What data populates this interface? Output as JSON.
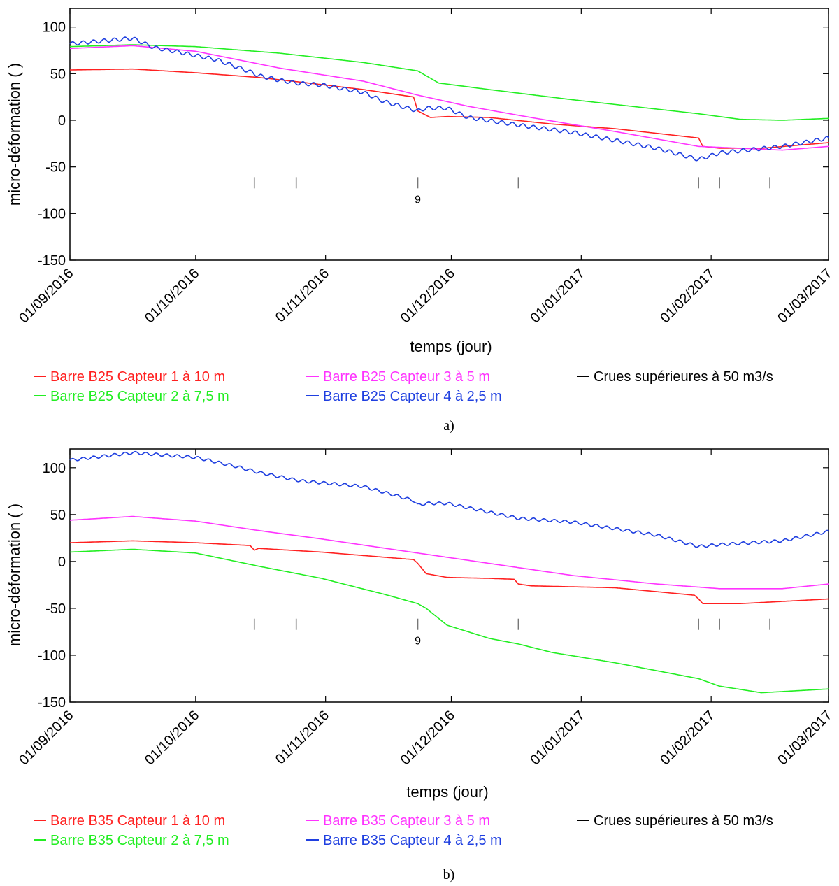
{
  "chart_data": [
    {
      "type": "line",
      "panel_label": "a)",
      "xlabel": "temps (jour)",
      "ylabel": "micro-déformation ( )",
      "ylim": [
        -150,
        120
      ],
      "yticks": [
        100,
        50,
        0,
        -50,
        -100,
        -150
      ],
      "xlim": [
        0,
        181
      ],
      "xtick_days": [
        0,
        30,
        61,
        91,
        122,
        153,
        181
      ],
      "xtick_labels": [
        "01/09/2016",
        "01/10/2016",
        "01/11/2016",
        "01/12/2016",
        "01/01/2017",
        "01/02/2017",
        "01/03/2017"
      ],
      "flood_marks": {
        "days": [
          44,
          54,
          83,
          107,
          150,
          155,
          167
        ],
        "y": -67,
        "label": "9",
        "label_day": 83
      },
      "legend": [
        {
          "label": "Barre B25  Capteur 1 à 10 m",
          "color": "#ff2020"
        },
        {
          "label": "Barre B25  Capteur 2 à 7,5 m",
          "color": "#22ee22"
        },
        {
          "label": "Barre B25  Capteur 3 à 5 m",
          "color": "#ff33ff"
        },
        {
          "label": "Barre B25  Capteur 4 à 2,5 m",
          "color": "#1f3fe0"
        },
        {
          "label": "Crues supérieures à 50 m3/s",
          "color": "#000000"
        }
      ],
      "series": [
        {
          "name": "Barre B25 Capteur 1 à 10 m",
          "color": "#ff2020",
          "x": [
            0,
            15,
            30,
            45,
            55,
            70,
            82,
            83,
            86,
            90,
            100,
            115,
            130,
            148,
            150,
            151,
            155,
            165,
            181
          ],
          "y": [
            54,
            55,
            51,
            46,
            41,
            33,
            25,
            10,
            3,
            4,
            3,
            -4,
            -9,
            -18,
            -19,
            -28,
            -30,
            -30,
            -24
          ]
        },
        {
          "name": "Barre B25 Capteur 2 à 7,5 m",
          "color": "#22ee22",
          "x": [
            0,
            15,
            30,
            50,
            70,
            83,
            88,
            100,
            120,
            140,
            150,
            160,
            170,
            181
          ],
          "y": [
            79,
            81,
            79,
            72,
            62,
            53,
            40,
            33,
            22,
            12,
            7,
            1,
            0,
            2
          ]
        },
        {
          "name": "Barre B25 Capteur 3 à 5 m",
          "color": "#ff33ff",
          "x": [
            0,
            15,
            30,
            50,
            70,
            83,
            95,
            110,
            130,
            150,
            170,
            181
          ],
          "y": [
            77,
            80,
            74,
            56,
            42,
            27,
            15,
            3,
            -12,
            -28,
            -32,
            -28
          ]
        },
        {
          "name": "Barre B25 Capteur 4 à 2,5 m",
          "color": "#1f3fe0",
          "x": [
            0,
            10,
            15,
            20,
            25,
            35,
            43,
            45,
            50,
            54,
            60,
            70,
            75,
            83,
            85,
            90,
            95,
            110,
            120,
            140,
            150,
            155,
            170,
            181
          ],
          "y": [
            82,
            86,
            88,
            78,
            74,
            65,
            52,
            48,
            43,
            40,
            38,
            30,
            20,
            10,
            13,
            13,
            3,
            -7,
            -13,
            -30,
            -42,
            -35,
            -28,
            -19
          ],
          "wiggle": [
            4,
            2.5
          ]
        }
      ]
    },
    {
      "type": "line",
      "panel_label": "b)",
      "xlabel": "temps (jour)",
      "ylabel": "micro-déformation ( )",
      "ylim": [
        -150,
        120
      ],
      "yticks": [
        100,
        50,
        0,
        -50,
        -100,
        -150
      ],
      "xlim": [
        0,
        181
      ],
      "xtick_days": [
        0,
        30,
        61,
        91,
        122,
        153,
        181
      ],
      "xtick_labels": [
        "01/09/2016",
        "01/10/2016",
        "01/11/2016",
        "01/12/2016",
        "01/01/2017",
        "01/02/2017",
        "01/03/2017"
      ],
      "flood_marks": {
        "days": [
          44,
          54,
          83,
          107,
          150,
          155,
          167
        ],
        "y": -67,
        "label": "9",
        "label_day": 83
      },
      "legend": [
        {
          "label": "Barre B35  Capteur 1 à 10 m",
          "color": "#ff2020"
        },
        {
          "label": "Barre B35  Capteur 2 à 7,5 m",
          "color": "#22ee22"
        },
        {
          "label": "Barre B35  Capteur 3 à 5 m",
          "color": "#ff33ff"
        },
        {
          "label": "Barre B35  Capteur 4 à 2,5 m",
          "color": "#1f3fe0"
        },
        {
          "label": "Crues supérieures à 50 m3/s",
          "color": "#000000"
        }
      ],
      "series": [
        {
          "name": "Barre B35 Capteur 1 à 10 m",
          "color": "#ff2020",
          "x": [
            0,
            15,
            30,
            43,
            44,
            45,
            60,
            82,
            83,
            85,
            90,
            100,
            106,
            107,
            110,
            130,
            149,
            150,
            151,
            160,
            181
          ],
          "y": [
            20,
            22,
            20,
            17,
            12,
            14,
            10,
            2,
            -2,
            -13,
            -17,
            -18,
            -19,
            -24,
            -26,
            -28,
            -36,
            -40,
            -45,
            -45,
            -40
          ]
        },
        {
          "name": "Barre B35 Capteur 2 à 7,5 m",
          "color": "#22ee22",
          "x": [
            0,
            15,
            30,
            45,
            60,
            75,
            83,
            85,
            90,
            100,
            107,
            115,
            130,
            150,
            155,
            165,
            181
          ],
          "y": [
            10,
            13,
            9,
            -5,
            -18,
            -35,
            -45,
            -50,
            -68,
            -82,
            -88,
            -97,
            -108,
            -125,
            -133,
            -140,
            -136
          ]
        },
        {
          "name": "Barre B35 Capteur 3 à 5 m",
          "color": "#ff33ff",
          "x": [
            0,
            15,
            30,
            45,
            60,
            83,
            100,
            120,
            140,
            155,
            170,
            181
          ],
          "y": [
            44,
            48,
            43,
            33,
            24,
            9,
            -2,
            -15,
            -24,
            -29,
            -29,
            -24
          ]
        },
        {
          "name": "Barre B35 Capteur 4 à 2,5 m",
          "color": "#1f3fe0",
          "x": [
            0,
            15,
            30,
            40,
            45,
            55,
            70,
            82,
            83,
            85,
            90,
            107,
            120,
            140,
            150,
            155,
            170,
            181
          ],
          "y": [
            108,
            116,
            111,
            101,
            95,
            86,
            80,
            65,
            60,
            62,
            62,
            46,
            42,
            28,
            16,
            18,
            22,
            32
          ],
          "wiggle": [
            3,
            2.5
          ]
        }
      ]
    }
  ]
}
